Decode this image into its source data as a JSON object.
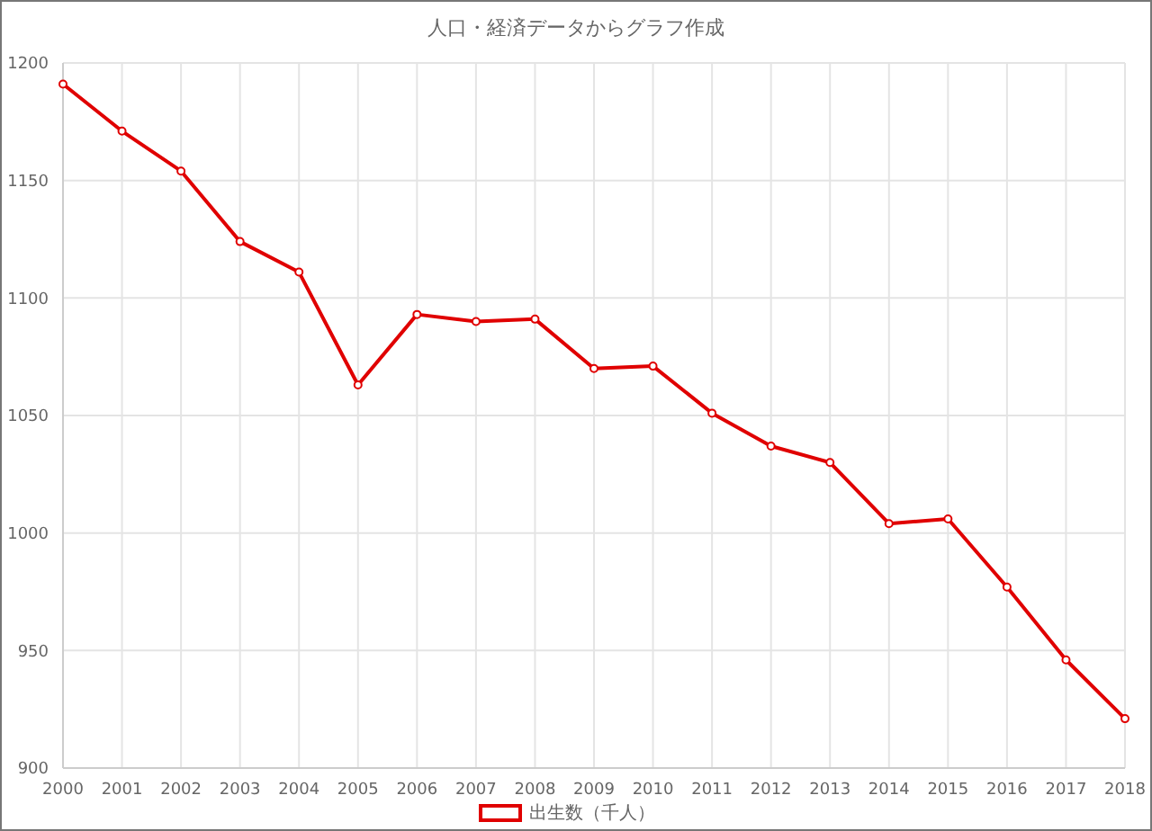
{
  "chart_data": {
    "type": "line",
    "title": "人口・経済データからグラフ作成",
    "categories": [
      "2000",
      "2001",
      "2002",
      "2003",
      "2004",
      "2005",
      "2006",
      "2007",
      "2008",
      "2009",
      "2010",
      "2011",
      "2012",
      "2013",
      "2014",
      "2015",
      "2016",
      "2017",
      "2018"
    ],
    "series": [
      {
        "name": "出生数（千人）",
        "color": "#e00000",
        "values": [
          1191,
          1171,
          1154,
          1124,
          1111,
          1063,
          1093,
          1090,
          1091,
          1070,
          1071,
          1051,
          1037,
          1030,
          1004,
          1006,
          977,
          946,
          921
        ]
      }
    ],
    "ylim": [
      900,
      1200
    ],
    "yticks": [
      900,
      950,
      1000,
      1050,
      1100,
      1150,
      1200
    ],
    "grid": true,
    "legend": "bottom",
    "marker": "circle",
    "line_style": "solid"
  }
}
